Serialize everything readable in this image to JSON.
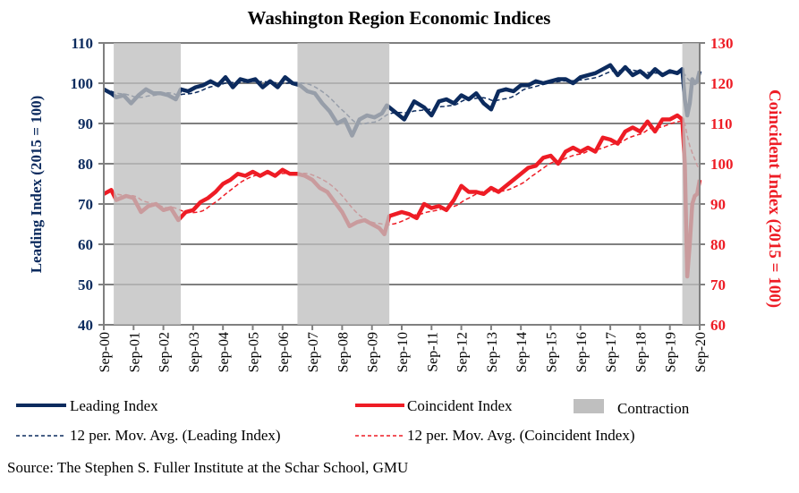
{
  "chart_data": {
    "type": "line",
    "title": "Washington Region Economic Indices",
    "ylabel_left": "Leading Index (2015 = 100)",
    "ylabel_right": "Coincident Index (2015 = 100)",
    "ylim_left": [
      40,
      110
    ],
    "ylim_right": [
      60,
      130
    ],
    "yticks_left": [
      "40",
      "50",
      "60",
      "70",
      "80",
      "90",
      "100",
      "110"
    ],
    "yticks_right": [
      "60",
      "70",
      "80",
      "90",
      "100",
      "110",
      "120",
      "130"
    ],
    "xticks": [
      "Sep-00",
      "Sep-01",
      "Sep-02",
      "Sep-03",
      "Sep-04",
      "Sep-05",
      "Sep-06",
      "Sep-07",
      "Sep-08",
      "Sep-09",
      "Sep-10",
      "Sep-11",
      "Sep-12",
      "Sep-13",
      "Sep-14",
      "Sep-15",
      "Sep-16",
      "Sep-17",
      "Sep-18",
      "Sep-19",
      "Sep-20"
    ],
    "xlim": [
      "2000-09",
      "2020-09"
    ],
    "grid": "horizontal",
    "legend_placement": "bottom",
    "ma_window": 12,
    "contractions": [
      [
        "2001-01",
        "2003-04"
      ],
      [
        "2007-03",
        "2010-04"
      ],
      [
        "2020-02",
        "2020-09"
      ]
    ],
    "series": [
      {
        "name": "Leading Index",
        "axis": "left",
        "color": "#0c2b5e",
        "points": [
          [
            "2000-09",
            98.5
          ],
          [
            "2000-12",
            97.5
          ],
          [
            "2001-02",
            96.5
          ],
          [
            "2001-05",
            97
          ],
          [
            "2001-08",
            95
          ],
          [
            "2001-11",
            97
          ],
          [
            "2002-02",
            98.5
          ],
          [
            "2002-05",
            97.5
          ],
          [
            "2002-08",
            97.5
          ],
          [
            "2002-11",
            97
          ],
          [
            "2003-02",
            96
          ],
          [
            "2003-04",
            98.5
          ],
          [
            "2003-07",
            98
          ],
          [
            "2003-10",
            99
          ],
          [
            "2004-01",
            99.5
          ],
          [
            "2004-04",
            100.5
          ],
          [
            "2004-07",
            99.5
          ],
          [
            "2004-10",
            101.5
          ],
          [
            "2005-01",
            99
          ],
          [
            "2005-04",
            101
          ],
          [
            "2005-07",
            100.5
          ],
          [
            "2005-10",
            101
          ],
          [
            "2006-01",
            99
          ],
          [
            "2006-04",
            100.5
          ],
          [
            "2006-07",
            99
          ],
          [
            "2006-10",
            101.5
          ],
          [
            "2007-01",
            100
          ],
          [
            "2007-04",
            99.5
          ],
          [
            "2007-07",
            98
          ],
          [
            "2007-10",
            97.5
          ],
          [
            "2008-01",
            95
          ],
          [
            "2008-04",
            93
          ],
          [
            "2008-07",
            90
          ],
          [
            "2008-10",
            91
          ],
          [
            "2009-01",
            87
          ],
          [
            "2009-04",
            91
          ],
          [
            "2009-07",
            92
          ],
          [
            "2009-10",
            91.5
          ],
          [
            "2010-01",
            92.5
          ],
          [
            "2010-03",
            94.5
          ],
          [
            "2010-06",
            93
          ],
          [
            "2010-10",
            91
          ],
          [
            "2011-02",
            95.5
          ],
          [
            "2011-06",
            94
          ],
          [
            "2011-09",
            92
          ],
          [
            "2011-12",
            95.5
          ],
          [
            "2012-03",
            96
          ],
          [
            "2012-06",
            95
          ],
          [
            "2012-09",
            97
          ],
          [
            "2012-12",
            96
          ],
          [
            "2013-03",
            97.5
          ],
          [
            "2013-06",
            95
          ],
          [
            "2013-09",
            93.5
          ],
          [
            "2013-12",
            98
          ],
          [
            "2014-03",
            98.5
          ],
          [
            "2014-06",
            98
          ],
          [
            "2014-09",
            99.5
          ],
          [
            "2014-12",
            99.5
          ],
          [
            "2015-03",
            100.5
          ],
          [
            "2015-06",
            100
          ],
          [
            "2015-09",
            100.5
          ],
          [
            "2015-12",
            101
          ],
          [
            "2016-03",
            101
          ],
          [
            "2016-06",
            100
          ],
          [
            "2016-09",
            101.5
          ],
          [
            "2016-12",
            102
          ],
          [
            "2017-03",
            102.5
          ],
          [
            "2017-06",
            103.5
          ],
          [
            "2017-09",
            104.5
          ],
          [
            "2017-12",
            102
          ],
          [
            "2018-03",
            104
          ],
          [
            "2018-06",
            102
          ],
          [
            "2018-09",
            103
          ],
          [
            "2018-12",
            101.5
          ],
          [
            "2019-03",
            103.5
          ],
          [
            "2019-06",
            102
          ],
          [
            "2019-09",
            103
          ],
          [
            "2019-12",
            102.5
          ],
          [
            "2020-02",
            103.5
          ],
          [
            "2020-03",
            96
          ],
          [
            "2020-04",
            92
          ],
          [
            "2020-05",
            95
          ],
          [
            "2020-06",
            101
          ],
          [
            "2020-07",
            100
          ],
          [
            "2020-08",
            100.5
          ],
          [
            "2020-09",
            103
          ]
        ]
      },
      {
        "name": "Coincident Index",
        "axis": "right",
        "color": "#ee1c25",
        "points": [
          [
            "2000-09",
            92.5
          ],
          [
            "2000-12",
            93.5
          ],
          [
            "2001-02",
            91
          ],
          [
            "2001-06",
            92
          ],
          [
            "2001-09",
            91.5
          ],
          [
            "2001-12",
            88
          ],
          [
            "2002-03",
            89.5
          ],
          [
            "2002-06",
            90
          ],
          [
            "2002-09",
            88.5
          ],
          [
            "2002-12",
            89
          ],
          [
            "2003-03",
            86
          ],
          [
            "2003-06",
            88
          ],
          [
            "2003-09",
            88.5
          ],
          [
            "2003-12",
            90.5
          ],
          [
            "2004-03",
            91.5
          ],
          [
            "2004-06",
            93
          ],
          [
            "2004-09",
            95
          ],
          [
            "2004-12",
            96
          ],
          [
            "2005-03",
            97.5
          ],
          [
            "2005-06",
            97
          ],
          [
            "2005-09",
            98
          ],
          [
            "2005-12",
            97
          ],
          [
            "2006-03",
            98
          ],
          [
            "2006-06",
            97
          ],
          [
            "2006-09",
            98.5
          ],
          [
            "2006-12",
            97.5
          ],
          [
            "2007-03",
            97.5
          ],
          [
            "2007-06",
            97
          ],
          [
            "2007-09",
            96
          ],
          [
            "2007-12",
            94
          ],
          [
            "2008-03",
            93
          ],
          [
            "2008-06",
            90.5
          ],
          [
            "2008-09",
            88
          ],
          [
            "2008-12",
            84.5
          ],
          [
            "2009-03",
            85.5
          ],
          [
            "2009-06",
            86
          ],
          [
            "2009-09",
            85
          ],
          [
            "2009-12",
            84
          ],
          [
            "2010-02",
            82.5
          ],
          [
            "2010-04",
            87
          ],
          [
            "2010-09",
            88
          ],
          [
            "2010-12",
            87.5
          ],
          [
            "2011-03",
            86.5
          ],
          [
            "2011-06",
            90
          ],
          [
            "2011-09",
            89
          ],
          [
            "2011-12",
            89.5
          ],
          [
            "2012-03",
            88.5
          ],
          [
            "2012-06",
            91
          ],
          [
            "2012-09",
            94.5
          ],
          [
            "2012-12",
            93
          ],
          [
            "2013-03",
            93
          ],
          [
            "2013-06",
            92.5
          ],
          [
            "2013-09",
            94
          ],
          [
            "2013-12",
            93
          ],
          [
            "2014-03",
            94.5
          ],
          [
            "2014-06",
            96
          ],
          [
            "2014-09",
            97.5
          ],
          [
            "2014-12",
            99
          ],
          [
            "2015-03",
            99.5
          ],
          [
            "2015-06",
            101.5
          ],
          [
            "2015-09",
            102
          ],
          [
            "2015-12",
            100
          ],
          [
            "2016-03",
            103
          ],
          [
            "2016-06",
            104
          ],
          [
            "2016-09",
            103
          ],
          [
            "2016-12",
            104
          ],
          [
            "2017-03",
            103
          ],
          [
            "2017-06",
            106.5
          ],
          [
            "2017-09",
            106
          ],
          [
            "2017-12",
            105
          ],
          [
            "2018-03",
            108
          ],
          [
            "2018-06",
            109
          ],
          [
            "2018-09",
            108
          ],
          [
            "2018-12",
            110.5
          ],
          [
            "2019-03",
            108
          ],
          [
            "2019-06",
            111
          ],
          [
            "2019-09",
            111
          ],
          [
            "2019-12",
            112
          ],
          [
            "2020-02",
            111
          ],
          [
            "2020-03",
            100
          ],
          [
            "2020-04",
            72
          ],
          [
            "2020-05",
            80
          ],
          [
            "2020-06",
            90
          ],
          [
            "2020-07",
            92
          ],
          [
            "2020-08",
            92.5
          ],
          [
            "2020-09",
            96
          ]
        ]
      }
    ],
    "legend": {
      "leading": "Leading Index",
      "coincident": "Coincident Index",
      "contraction": "Contraction",
      "leading_ma": "12 per. Mov. Avg. (Leading Index)",
      "coincident_ma": "12 per. Mov. Avg. (Coincident Index)"
    },
    "source": "Source: The Stephen S. Fuller Institute at the Schar School, GMU",
    "colors": {
      "leading": "#0c2b5e",
      "coincident": "#ee1c25",
      "contraction": "#bfbfbf",
      "grid": "#808080"
    }
  }
}
